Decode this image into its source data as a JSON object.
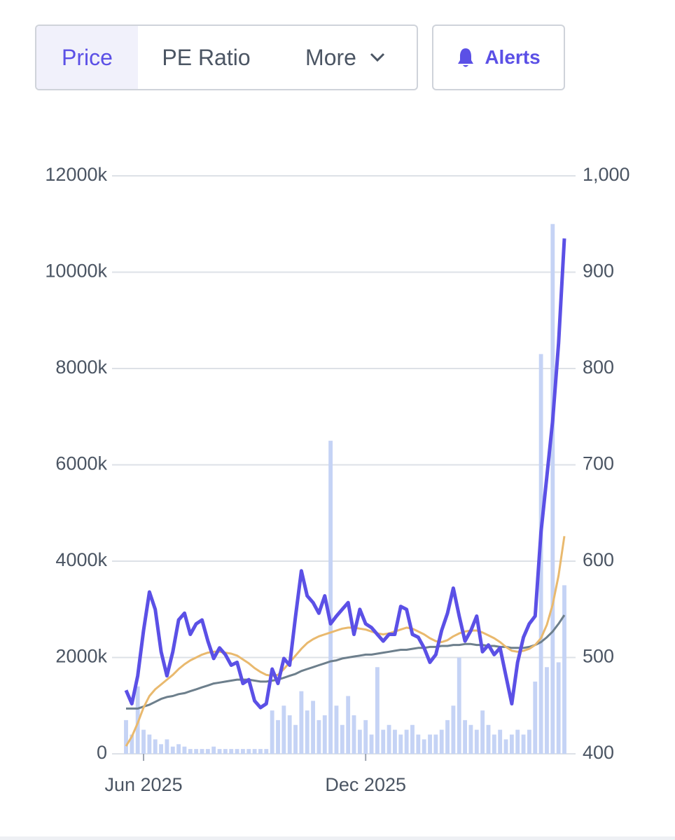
{
  "tabs": [
    "Price",
    "PE Ratio",
    "More"
  ],
  "alerts": "Alerts",
  "chart_data": {
    "type": "line",
    "categories": [
      null,
      null,
      null,
      "Jun 2025",
      null,
      null,
      null,
      null,
      null,
      null,
      null,
      null,
      null,
      null,
      null,
      null,
      null,
      null,
      null,
      null,
      null,
      null,
      null,
      null,
      null,
      null,
      null,
      null,
      null,
      null,
      null,
      null,
      null,
      null,
      null,
      null,
      null,
      null,
      null,
      null,
      null,
      "Dec 2025",
      null,
      null,
      null,
      null,
      null,
      null,
      null,
      null,
      null,
      null,
      null,
      null,
      null,
      null,
      null,
      null,
      null,
      null,
      null,
      null,
      null,
      null,
      null,
      null,
      null,
      null,
      null,
      null,
      null,
      null,
      null,
      null,
      null,
      null
    ],
    "ylim": [
      0,
      12000
    ],
    "yticks": [
      0,
      {
        "value": 2000,
        "label": "2000k"
      },
      {
        "value": 4000,
        "label": "4000k"
      },
      {
        "value": 6000,
        "label": "6000k"
      },
      {
        "value": 8000,
        "label": "8000k"
      },
      {
        "value": 10000,
        "label": "10000k"
      },
      {
        "value": 12000,
        "label": "12000k"
      }
    ],
    "y2lim": [
      400,
      1000
    ],
    "y2ticks": [
      400,
      500,
      600,
      700,
      800,
      900,
      {
        "value": 1000,
        "label": "1,000"
      }
    ],
    "grid": true,
    "series": [
      {
        "type": "bar",
        "color": "#c5d3f5",
        "values": [
          700,
          400,
          1400,
          500,
          400,
          300,
          200,
          300,
          150,
          200,
          150,
          100,
          100,
          100,
          100,
          150,
          100,
          100,
          100,
          100,
          100,
          100,
          100,
          100,
          100,
          900,
          700,
          1000,
          800,
          600,
          1300,
          900,
          1100,
          700,
          800,
          6500,
          1000,
          600,
          1200,
          800,
          500,
          700,
          400,
          1800,
          500,
          600,
          500,
          400,
          500,
          600,
          400,
          300,
          400,
          400,
          500,
          700,
          1000,
          2000,
          700,
          600,
          500,
          900,
          600,
          400,
          500,
          300,
          400,
          500,
          400,
          500,
          1500,
          8300,
          1800,
          11000,
          1900,
          3500
        ]
      },
      {
        "axis": "y2",
        "color": "#6d7f8c",
        "width": 3,
        "values": [
          447,
          447,
          447,
          449,
          451,
          454,
          457,
          459,
          460,
          462,
          463,
          465,
          467,
          469,
          471,
          473,
          474,
          475,
          476,
          477,
          477,
          477,
          476,
          475,
          475,
          476,
          477,
          479,
          481,
          483,
          486,
          488,
          490,
          492,
          494,
          496,
          497,
          499,
          500,
          501,
          502,
          503,
          503,
          504,
          505,
          506,
          507,
          508,
          508,
          509,
          510,
          510,
          511,
          511,
          512,
          512,
          513,
          513,
          514,
          514,
          513,
          513,
          512,
          512,
          511,
          511,
          510,
          510,
          510,
          511,
          513,
          516,
          521,
          527,
          535,
          544
        ]
      },
      {
        "axis": "y2",
        "color": "#e9b96e",
        "width": 3,
        "values": [
          408,
          418,
          432,
          448,
          460,
          467,
          472,
          477,
          482,
          488,
          493,
          497,
          500,
          503,
          505,
          506,
          506,
          505,
          504,
          502,
          498,
          494,
          489,
          485,
          482,
          481,
          482,
          488,
          495,
          502,
          509,
          515,
          519,
          522,
          524,
          526,
          528,
          530,
          531,
          531,
          530,
          529,
          527,
          525,
          524,
          525,
          527,
          529,
          531,
          530,
          527,
          524,
          520,
          517,
          516,
          518,
          522,
          525,
          527,
          528,
          528,
          526,
          523,
          520,
          516,
          511,
          507,
          506,
          507,
          509,
          513,
          520,
          534,
          555,
          585,
          626
        ]
      },
      {
        "axis": "y2",
        "color": "#5b50e6",
        "width": 5,
        "values": [
          466,
          452,
          481,
          528,
          568,
          550,
          506,
          481,
          506,
          539,
          546,
          524,
          535,
          539,
          517,
          499,
          510,
          503,
          492,
          495,
          473,
          477,
          455,
          448,
          452,
          488,
          473,
          499,
          492,
          543,
          590,
          564,
          557,
          546,
          564,
          535,
          543,
          550,
          557,
          524,
          550,
          535,
          531,
          524,
          517,
          524,
          524,
          553,
          550,
          524,
          521,
          510,
          495,
          503,
          528,
          546,
          572,
          543,
          517,
          528,
          543,
          506,
          513,
          503,
          510,
          481,
          452,
          495,
          521,
          535,
          543,
          630,
          688,
          746,
          826,
          935
        ]
      }
    ]
  }
}
